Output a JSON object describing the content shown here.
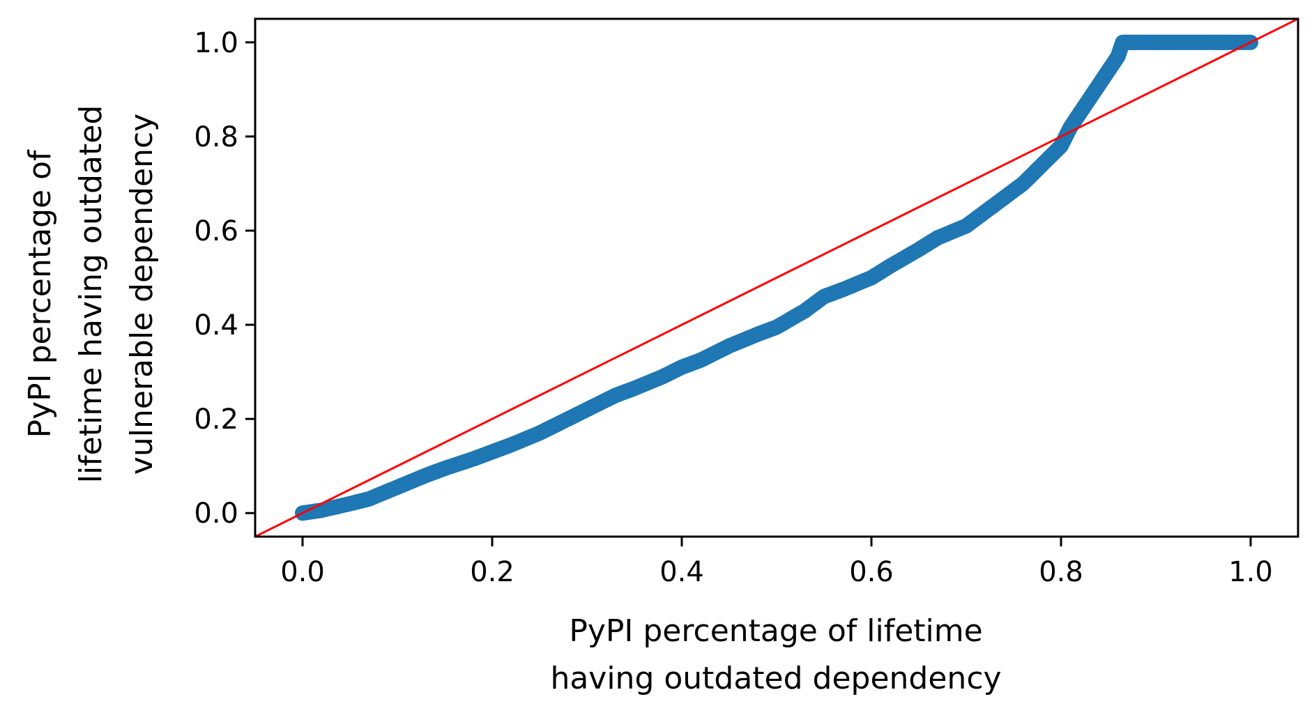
{
  "chart_data": {
    "type": "scatter",
    "title": "",
    "xlabel": [
      "PyPI percentage of lifetime",
      "having outdated dependency"
    ],
    "ylabel": [
      "PyPI percentage of",
      "lifetime having outdated",
      "vulnerable dependency"
    ],
    "xlim": [
      -0.05,
      1.05
    ],
    "ylim": [
      -0.05,
      1.05
    ],
    "xticks": [
      "0.0",
      "0.2",
      "0.4",
      "0.6",
      "0.8",
      "1.0"
    ],
    "yticks": [
      "0.0",
      "0.2",
      "0.4",
      "0.6",
      "0.8",
      "1.0"
    ],
    "grid": false,
    "colors": {
      "points": "#1f77b4",
      "reference_line": "#ff0000"
    },
    "reference_line": {
      "x": [
        -0.05,
        1.05
      ],
      "y": [
        -0.05,
        1.05
      ]
    },
    "series": [
      {
        "points": [
          [
            0.0,
            0.0
          ],
          [
            0.02,
            0.006
          ],
          [
            0.05,
            0.02
          ],
          [
            0.07,
            0.03
          ],
          [
            0.1,
            0.055
          ],
          [
            0.13,
            0.08
          ],
          [
            0.15,
            0.095
          ],
          [
            0.18,
            0.115
          ],
          [
            0.2,
            0.13
          ],
          [
            0.22,
            0.145
          ],
          [
            0.25,
            0.17
          ],
          [
            0.27,
            0.19
          ],
          [
            0.3,
            0.22
          ],
          [
            0.33,
            0.25
          ],
          [
            0.35,
            0.265
          ],
          [
            0.38,
            0.29
          ],
          [
            0.4,
            0.31
          ],
          [
            0.42,
            0.325
          ],
          [
            0.45,
            0.355
          ],
          [
            0.48,
            0.38
          ],
          [
            0.5,
            0.395
          ],
          [
            0.53,
            0.43
          ],
          [
            0.55,
            0.46
          ],
          [
            0.57,
            0.475
          ],
          [
            0.6,
            0.5
          ],
          [
            0.62,
            0.525
          ],
          [
            0.65,
            0.56
          ],
          [
            0.67,
            0.585
          ],
          [
            0.7,
            0.61
          ],
          [
            0.72,
            0.64
          ],
          [
            0.74,
            0.67
          ],
          [
            0.76,
            0.7
          ],
          [
            0.78,
            0.74
          ],
          [
            0.8,
            0.78
          ],
          [
            0.81,
            0.82
          ],
          [
            0.82,
            0.85
          ],
          [
            0.83,
            0.88
          ],
          [
            0.84,
            0.91
          ],
          [
            0.85,
            0.94
          ],
          [
            0.86,
            0.97
          ],
          [
            0.865,
            1.0
          ],
          [
            0.88,
            1.0
          ],
          [
            0.9,
            1.0
          ],
          [
            0.92,
            1.0
          ],
          [
            0.94,
            1.0
          ],
          [
            0.96,
            1.0
          ],
          [
            0.975,
            1.0
          ],
          [
            1.0,
            1.0
          ]
        ]
      }
    ]
  }
}
